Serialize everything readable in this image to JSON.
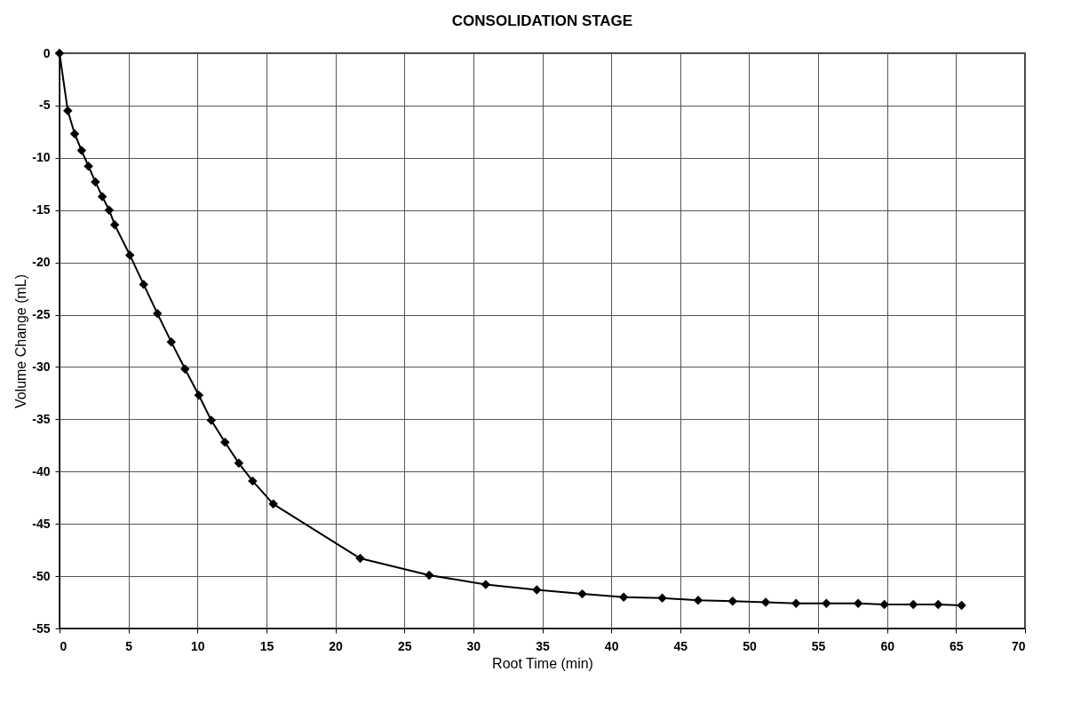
{
  "chart_data": {
    "type": "line",
    "title": "CONSOLIDATION STAGE",
    "xlabel": "Root Time (min)",
    "ylabel": "Volume Change (mL)",
    "x": [
      0,
      0.6,
      1.1,
      1.6,
      2.1,
      2.6,
      3.1,
      3.6,
      4.0,
      5.1,
      6.1,
      7.1,
      8.1,
      9.1,
      10.1,
      11.0,
      12.0,
      13.0,
      14.0,
      15.5,
      21.8,
      26.8,
      30.9,
      34.6,
      37.9,
      40.9,
      43.7,
      46.3,
      48.8,
      51.2,
      53.4,
      55.6,
      57.9,
      59.8,
      61.9,
      63.7,
      65.4
    ],
    "series": [
      {
        "color": "#000000",
        "values": [
          0,
          -5.5,
          -7.7,
          -9.3,
          -10.8,
          -12.3,
          -13.7,
          -15.0,
          -16.4,
          -19.3,
          -22.1,
          -24.9,
          -27.6,
          -30.2,
          -32.7,
          -35.1,
          -37.2,
          -39.2,
          -40.9,
          -43.1,
          -48.3,
          -49.9,
          -50.8,
          -51.3,
          -51.7,
          -52.0,
          -52.1,
          -52.3,
          -52.4,
          -52.5,
          -52.6,
          -52.6,
          -52.6,
          -52.7,
          -52.7,
          -52.7,
          -52.8
        ]
      }
    ],
    "xlim": [
      0,
      70
    ],
    "xticks": [
      0,
      5,
      10,
      15,
      20,
      25,
      30,
      35,
      40,
      45,
      50,
      55,
      60,
      65,
      70
    ],
    "ylim": [
      -55,
      0
    ],
    "yticks": [
      0,
      -5,
      -10,
      -15,
      -20,
      -25,
      -30,
      -35,
      -40,
      -45,
      -50,
      -55
    ],
    "grid": true,
    "marker": "diamond",
    "line_style": "solid"
  }
}
